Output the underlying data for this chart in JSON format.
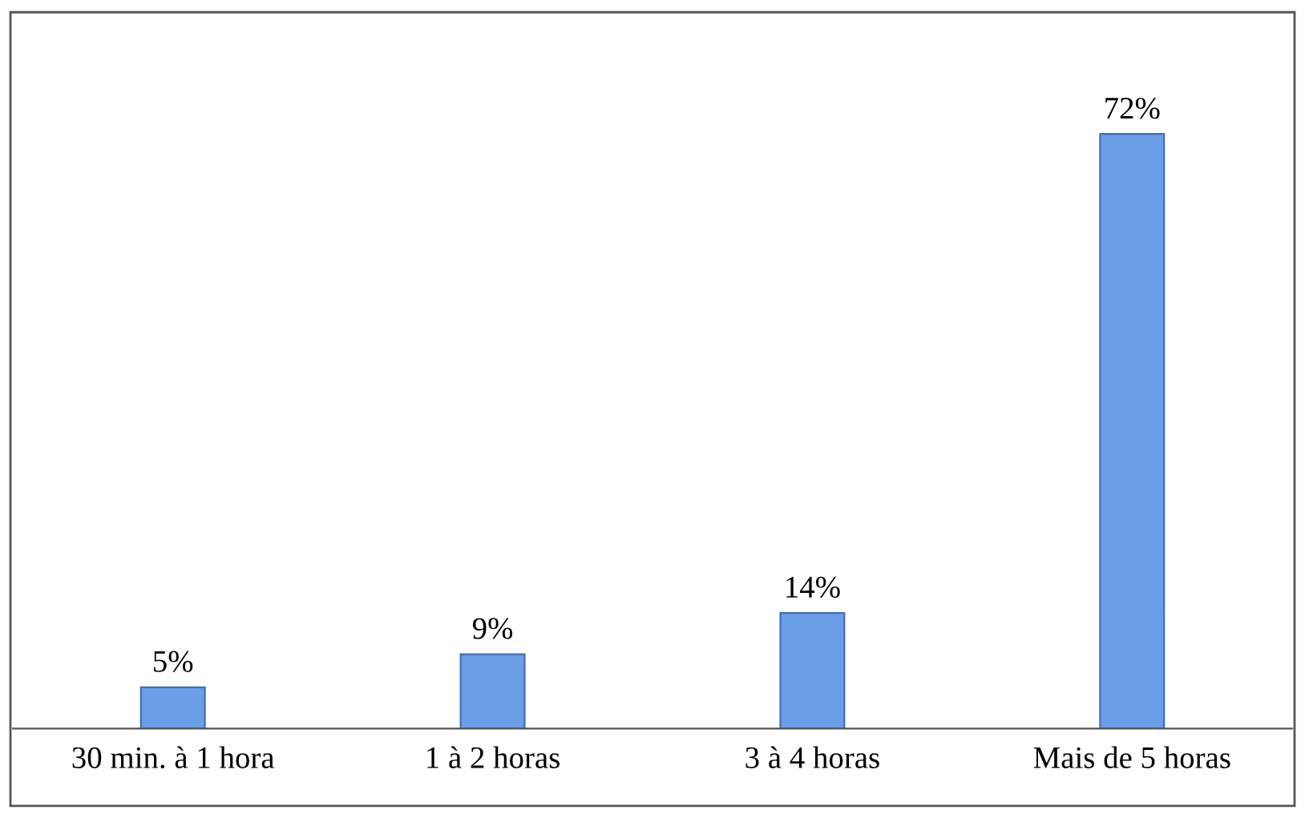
{
  "chart_data": {
    "type": "bar",
    "categories": [
      "30 min. à 1 hora",
      "1 à 2 horas",
      "3 à 4 horas",
      "Mais de 5 horas"
    ],
    "values": [
      5,
      9,
      14,
      72
    ],
    "value_labels": [
      "5%",
      "9%",
      "14%",
      "72%"
    ],
    "color": "#6a9ee6",
    "grid": false,
    "legend": false,
    "tick_labels": "x"
  }
}
